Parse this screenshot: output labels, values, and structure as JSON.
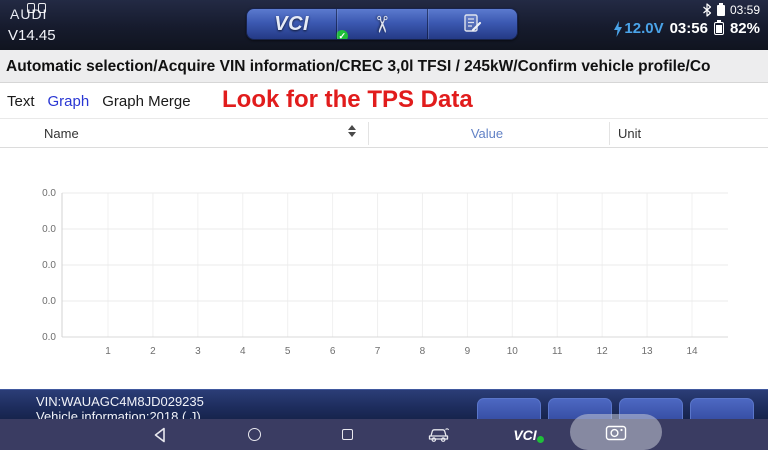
{
  "app": {
    "brand": "AUDI",
    "version": "V14.45"
  },
  "status_bar": {
    "time": "03:59"
  },
  "toolbar": {
    "vci_label": "VCI",
    "vci_check": "✓",
    "scissors_glyph": "✂",
    "voltage": "12.0V",
    "time": "03:56",
    "battery": "82%"
  },
  "breadcrumb": {
    "path": "Automatic selection/Acquire VIN information/CREC 3,0l TFSI / 245kW/Confirm vehicle profile/Co"
  },
  "tabs": {
    "items": [
      {
        "label": "Text",
        "active": false
      },
      {
        "label": "Graph",
        "active": true
      },
      {
        "label": "Graph Merge",
        "active": false
      }
    ]
  },
  "annotation": {
    "text": "Look for the TPS Data",
    "color": "#e11c1c"
  },
  "table": {
    "columns": [
      {
        "label": "Name"
      },
      {
        "label": "Value"
      },
      {
        "label": "Unit"
      }
    ]
  },
  "chart_data": {
    "type": "line",
    "title": "",
    "xlabel": "",
    "ylabel": "",
    "x_ticks": [
      "1",
      "2",
      "3",
      "4",
      "5",
      "6",
      "7",
      "8",
      "9",
      "10",
      "11",
      "12",
      "13",
      "14"
    ],
    "y_ticks": [
      "0.0",
      "0.0",
      "0.0",
      "0.0",
      "0.0"
    ],
    "series": [],
    "grid": true,
    "legend": false
  },
  "footer": {
    "vin": "VIN:WAUAGC4M8JD029235",
    "vehicle_info": "Vehicle information:2018 ( J)"
  },
  "nav": {
    "vci_label": "VCI"
  },
  "colors": {
    "active_tab_blue": "#2936d3",
    "value_header_blue": "#6282c6",
    "annotation_red": "#e11c1c",
    "voltage_blue": "#4aa3e8",
    "vci_green": "#1fbf3a",
    "topbar_bg": "#161b2d",
    "footer_bg": "#1d2c5c",
    "navbar_bg": "#3a3c62"
  }
}
